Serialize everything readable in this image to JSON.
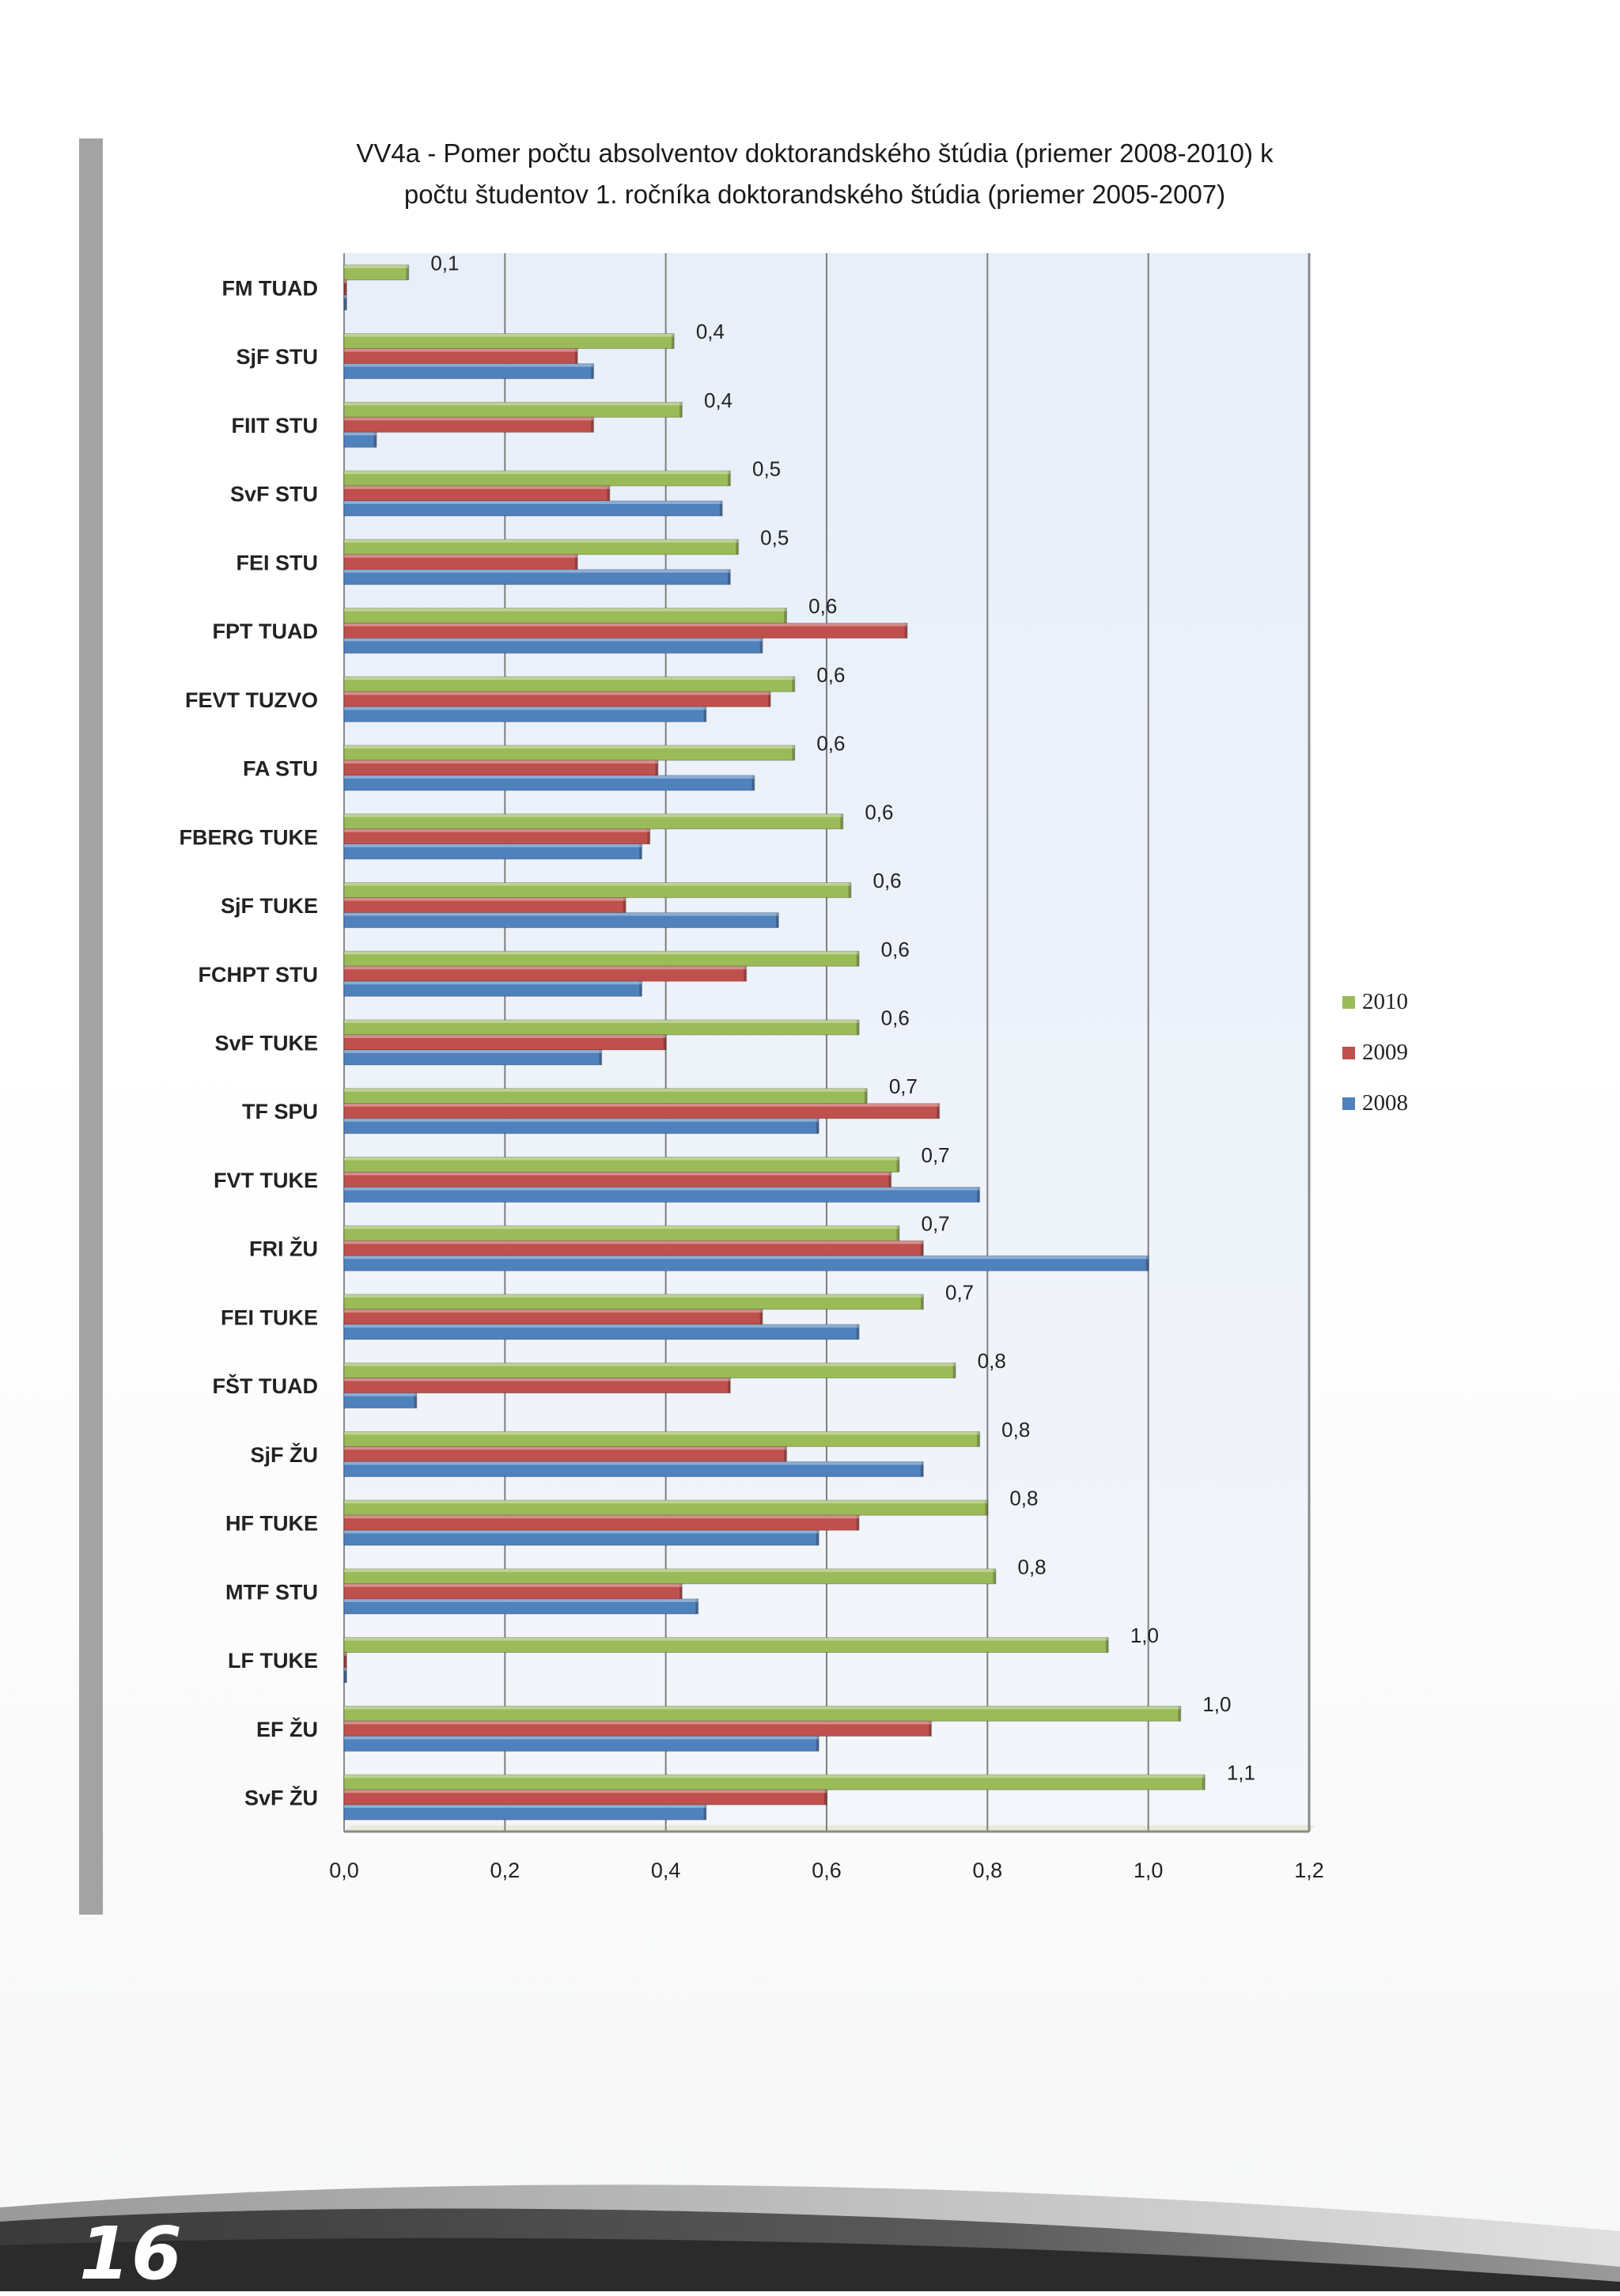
{
  "page_number": "16",
  "chart_data": {
    "type": "bar",
    "orientation": "horizontal",
    "title": "VV4a - Pomer počtu absolventov doktorandského štúdia  (priemer 2008-2010) k počtu študentov 1. ročníka doktorandského štúdia (priemer 2005-2007)",
    "title_lines": [
      "VV4a - Pomer počtu absolventov doktorandského štúdia  (priemer 2008-2010) k",
      "počtu študentov 1. ročníka doktorandského štúdia (priemer 2005-2007)"
    ],
    "xlabel": "",
    "ylabel": "",
    "xlim": [
      0,
      1.2
    ],
    "x_ticks": [
      "0,0",
      "0,2",
      "0,4",
      "0,6",
      "0,8",
      "1,0",
      "1,2"
    ],
    "grid": true,
    "legend_position": "right",
    "categories": [
      "FM TUAD",
      "SjF STU",
      "FIIT STU",
      "SvF STU",
      "FEI STU",
      "FPT TUAD",
      "FEVT TUZVO",
      "FA STU",
      "FBERG  TUKE",
      "SjF TUKE",
      "FCHPT STU",
      "SvF TUKE",
      "TF SPU",
      "FVT TUKE",
      "FRI ŽU",
      "FEI TUKE",
      "FŠT TUAD",
      "SjF ŽU",
      "HF TUKE",
      "MTF STU",
      "LF TUKE",
      "EF ŽU",
      "SvF ŽU"
    ],
    "series": [
      {
        "name": "2010",
        "color": "#9bbb59",
        "values": [
          0.08,
          0.41,
          0.42,
          0.48,
          0.49,
          0.55,
          0.56,
          0.56,
          0.62,
          0.63,
          0.64,
          0.64,
          0.65,
          0.69,
          0.69,
          0.72,
          0.76,
          0.79,
          0.8,
          0.81,
          0.95,
          1.04,
          1.07
        ],
        "labels": [
          "0,1",
          "0,4",
          "0,4",
          "0,5",
          "0,5",
          "0,6",
          "0,6",
          "0,6",
          "0,6",
          "0,6",
          "0,6",
          "0,6",
          "0,7",
          "0,7",
          "0,7",
          "0,7",
          "0,8",
          "0,8",
          "0,8",
          "0,8",
          "1,0",
          "1,0",
          "1,1"
        ]
      },
      {
        "name": "2009",
        "color": "#c0504d",
        "values": [
          0.0,
          0.29,
          0.31,
          0.33,
          0.29,
          0.7,
          0.53,
          0.39,
          0.38,
          0.35,
          0.5,
          0.4,
          0.74,
          0.68,
          0.72,
          0.52,
          0.48,
          0.55,
          0.64,
          0.42,
          0.0,
          0.73,
          0.6
        ]
      },
      {
        "name": "2008",
        "color": "#4f81bd",
        "values": [
          0.0,
          0.31,
          0.04,
          0.47,
          0.48,
          0.52,
          0.45,
          0.51,
          0.37,
          0.54,
          0.37,
          0.32,
          0.59,
          0.79,
          1.0,
          0.64,
          0.09,
          0.72,
          0.59,
          0.44,
          0.0,
          0.59,
          0.45
        ]
      }
    ],
    "legend": [
      "2010",
      "2009",
      "2008"
    ]
  }
}
